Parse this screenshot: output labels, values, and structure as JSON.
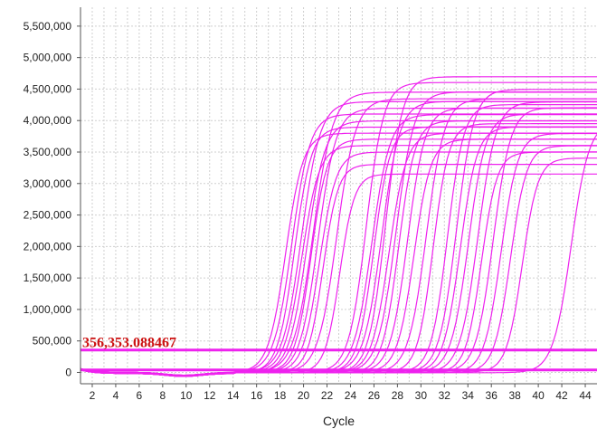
{
  "colors": {
    "curve": "#ee22ee",
    "threshold_line": "#ee22ee",
    "threshold_label": "#cc1111",
    "grid": "#cfcfcf",
    "axis": "#555555",
    "background": "#ffffff"
  },
  "chart_data": {
    "type": "line",
    "title": "",
    "xlabel": "Cycle",
    "ylabel": "",
    "xlim": [
      1,
      45
    ],
    "ylim": [
      -180000,
      5800000
    ],
    "grid": true,
    "legend": "none",
    "x_ticks": [
      2,
      4,
      6,
      8,
      10,
      12,
      14,
      16,
      18,
      20,
      22,
      24,
      26,
      28,
      30,
      32,
      34,
      36,
      38,
      40,
      42,
      44
    ],
    "x_tick_labels": [
      "2",
      "4",
      "6",
      "8",
      "10",
      "12",
      "14",
      "16",
      "18",
      "20",
      "22",
      "24",
      "26",
      "28",
      "30",
      "32",
      "34",
      "36",
      "38",
      "40",
      "42",
      "44"
    ],
    "y_ticks": [
      0,
      500000,
      1000000,
      1500000,
      2000000,
      2500000,
      3000000,
      3500000,
      4000000,
      4500000,
      5000000,
      5500000
    ],
    "y_tick_labels": [
      "0",
      "500,000",
      "1,000,000",
      "1,500,000",
      "2,000,000",
      "2,500,000",
      "3,000,000",
      "3,500,000",
      "4,000,000",
      "4,500,000",
      "5,000,000",
      "5,500,000"
    ],
    "threshold": {
      "value": 356353.088467,
      "label": "356,353.088467"
    },
    "baseline_line": {
      "value": 40000
    },
    "series": [
      {
        "ct": 16.8,
        "plateau": 3800000,
        "slope": 1.35
      },
      {
        "ct": 17.2,
        "plateau": 4100000,
        "slope": 1.3
      },
      {
        "ct": 17.6,
        "plateau": 3900000,
        "slope": 1.4
      },
      {
        "ct": 17.9,
        "plateau": 4300000,
        "slope": 1.25
      },
      {
        "ct": 18.2,
        "plateau": 3600000,
        "slope": 1.35
      },
      {
        "ct": 18.5,
        "plateau": 4000000,
        "slope": 1.3
      },
      {
        "ct": 18.8,
        "plateau": 4450000,
        "slope": 1.2
      },
      {
        "ct": 19.1,
        "plateau": 3700000,
        "slope": 1.45
      },
      {
        "ct": 19.4,
        "plateau": 4200000,
        "slope": 1.3
      },
      {
        "ct": 19.8,
        "plateau": 3500000,
        "slope": 1.4
      },
      {
        "ct": 20.3,
        "plateau": 3300000,
        "slope": 1.55
      },
      {
        "ct": 20.9,
        "plateau": 4350000,
        "slope": 1.25
      },
      {
        "ct": 21.8,
        "plateau": 3150000,
        "slope": 1.6
      },
      {
        "ct": 23.5,
        "plateau": 4600000,
        "slope": 1.35
      },
      {
        "ct": 24.0,
        "plateau": 4100000,
        "slope": 1.3
      },
      {
        "ct": 24.4,
        "plateau": 3900000,
        "slope": 1.45
      },
      {
        "ct": 24.8,
        "plateau": 4300000,
        "slope": 1.3
      },
      {
        "ct": 25.2,
        "plateau": 4700000,
        "slope": 1.4
      },
      {
        "ct": 25.6,
        "plateau": 3800000,
        "slope": 1.35
      },
      {
        "ct": 26.0,
        "plateau": 4450000,
        "slope": 1.3
      },
      {
        "ct": 26.5,
        "plateau": 4000000,
        "slope": 1.45
      },
      {
        "ct": 27.1,
        "plateau": 4200000,
        "slope": 1.35
      },
      {
        "ct": 27.8,
        "plateau": 3700000,
        "slope": 1.4
      },
      {
        "ct": 28.6,
        "plateau": 4350000,
        "slope": 1.3
      },
      {
        "ct": 29.5,
        "plateau": 3950000,
        "slope": 1.5
      },
      {
        "ct": 30.6,
        "plateau": 4250000,
        "slope": 1.45
      },
      {
        "ct": 31.2,
        "plateau": 4500000,
        "slope": 1.35
      },
      {
        "ct": 31.7,
        "plateau": 3900000,
        "slope": 1.4
      },
      {
        "ct": 32.3,
        "plateau": 4100000,
        "slope": 1.35
      },
      {
        "ct": 33.0,
        "plateau": 4300000,
        "slope": 1.3
      },
      {
        "ct": 33.7,
        "plateau": 3500000,
        "slope": 1.5
      },
      {
        "ct": 34.4,
        "plateau": 4200000,
        "slope": 1.35
      },
      {
        "ct": 35.2,
        "plateau": 3800000,
        "slope": 1.4
      },
      {
        "ct": 36.1,
        "plateau": 3600000,
        "slope": 1.45
      },
      {
        "ct": 37.2,
        "plateau": 3400000,
        "slope": 1.5
      },
      {
        "ct": 41.0,
        "plateau": 4000000,
        "slope": 1.3
      }
    ]
  }
}
